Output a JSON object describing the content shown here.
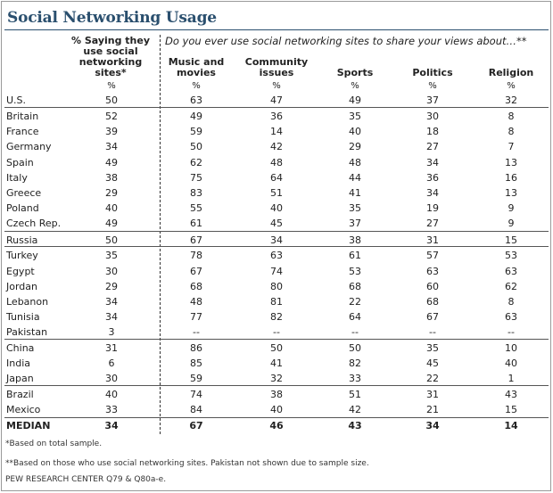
{
  "title": "Social Networking Usage",
  "header": {
    "share_col": [
      "% Saying they",
      "use social",
      "networking",
      "sites*"
    ],
    "question": "Do you ever use social networking sites to share your views about…**",
    "columns": [
      [
        "Music and",
        "movies"
      ],
      [
        "Community",
        "issues"
      ],
      [
        "Sports"
      ],
      [
        "Politics"
      ],
      [
        "Religion"
      ]
    ],
    "pct_sign": "%"
  },
  "rows": [
    {
      "label": "U.S.",
      "values": [
        "50",
        "63",
        "47",
        "49",
        "37",
        "32"
      ]
    },
    {
      "label": "Britain",
      "values": [
        "52",
        "49",
        "36",
        "35",
        "30",
        "8"
      ]
    },
    {
      "label": "France",
      "values": [
        "39",
        "59",
        "14",
        "40",
        "18",
        "8"
      ]
    },
    {
      "label": "Germany",
      "values": [
        "34",
        "50",
        "42",
        "29",
        "27",
        "7"
      ]
    },
    {
      "label": "Spain",
      "values": [
        "49",
        "62",
        "48",
        "48",
        "34",
        "13"
      ]
    },
    {
      "label": "Italy",
      "values": [
        "38",
        "75",
        "64",
        "44",
        "36",
        "16"
      ]
    },
    {
      "label": "Greece",
      "values": [
        "29",
        "83",
        "51",
        "41",
        "34",
        "13"
      ]
    },
    {
      "label": "Poland",
      "values": [
        "40",
        "55",
        "40",
        "35",
        "19",
        "9"
      ]
    },
    {
      "label": "Czech Rep.",
      "values": [
        "49",
        "61",
        "45",
        "37",
        "27",
        "9"
      ]
    },
    {
      "label": "Russia",
      "values": [
        "50",
        "67",
        "34",
        "38",
        "31",
        "15"
      ]
    },
    {
      "label": "Turkey",
      "values": [
        "35",
        "78",
        "63",
        "61",
        "57",
        "53"
      ]
    },
    {
      "label": "Egypt",
      "values": [
        "30",
        "67",
        "74",
        "53",
        "63",
        "63"
      ]
    },
    {
      "label": "Jordan",
      "values": [
        "29",
        "68",
        "80",
        "68",
        "60",
        "62"
      ]
    },
    {
      "label": "Lebanon",
      "values": [
        "34",
        "48",
        "81",
        "22",
        "68",
        "8"
      ]
    },
    {
      "label": "Tunisia",
      "values": [
        "34",
        "77",
        "82",
        "64",
        "67",
        "63"
      ]
    },
    {
      "label": "Pakistan",
      "values": [
        "3",
        "--",
        "--",
        "--",
        "--",
        "--"
      ]
    },
    {
      "label": "China",
      "values": [
        "31",
        "86",
        "50",
        "50",
        "35",
        "10"
      ]
    },
    {
      "label": "India",
      "values": [
        "6",
        "85",
        "41",
        "82",
        "45",
        "40"
      ]
    },
    {
      "label": "Japan",
      "values": [
        "30",
        "59",
        "32",
        "33",
        "22",
        "1"
      ]
    },
    {
      "label": "Brazil",
      "values": [
        "40",
        "74",
        "38",
        "51",
        "31",
        "43"
      ]
    },
    {
      "label": "Mexico",
      "values": [
        "33",
        "84",
        "40",
        "42",
        "21",
        "15"
      ]
    }
  ],
  "median": {
    "label": "MEDIAN",
    "values": [
      "34",
      "67",
      "46",
      "43",
      "34",
      "14"
    ]
  },
  "notes": [
    "*Based on total sample.",
    "**Based on those who  use social networking sites.  Pakistan not shown due to sample size.",
    "PEW RESEARCH CENTER Q79 & Q80a-e."
  ]
}
